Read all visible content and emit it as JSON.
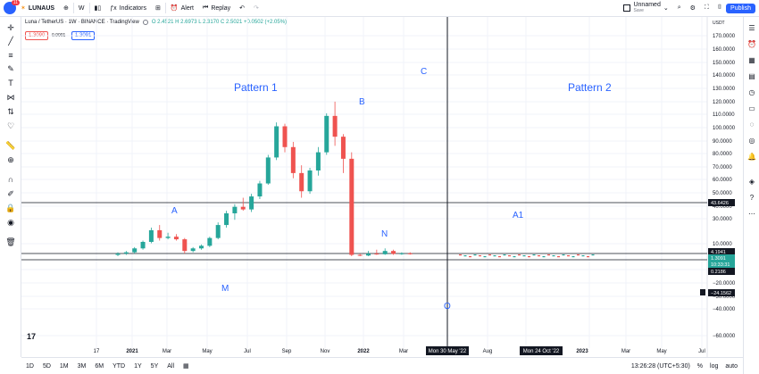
{
  "topbar": {
    "avatar_badge": "11",
    "symbol": "LUNAUS",
    "interval": "W",
    "indicators_label": "Indicators",
    "alert_label": "Alert",
    "replay_label": "Replay",
    "layout_name": "Unnamed",
    "layout_status": "Save",
    "publish_label": "Publish"
  },
  "legend": {
    "title": "Luna / TetherUS · 1W · BINANCE · TradingView",
    "ohlc": "O 2.4521  H 2.6973  L 2.3170  C 2.5021  +0.0502 (+2.05%)",
    "bid": "1.3090",
    "spread": "0.0001",
    "ask": "1.3091"
  },
  "price_axis": {
    "currency": "USDT",
    "ticks": [
      "170.0000",
      "160.0000",
      "150.0000",
      "140.0000",
      "130.0000",
      "120.0000",
      "110.0000",
      "100.0000",
      "90.0000",
      "80.0000",
      "70.0000",
      "60.0000",
      "50.0000",
      "40.0000",
      "30.0000",
      "10.0000",
      "−10.0000",
      "−20.0000",
      "−30.0000",
      "−40.0000",
      "−60.0000"
    ],
    "labels": [
      {
        "text": "43.6426",
        "kind": "line"
      },
      {
        "text": "4.1941",
        "kind": "line"
      },
      {
        "text": "1.3091",
        "kind": "current"
      },
      {
        "text": "10:33:31",
        "kind": "countdown"
      },
      {
        "text": "0.2186",
        "kind": "last"
      },
      {
        "text": "−24.1562",
        "kind": "cursor"
      }
    ]
  },
  "time_axis": {
    "ticks": [
      "17",
      "2021",
      "Mar",
      "May",
      "Jul",
      "Sep",
      "Nov",
      "2022",
      "Mar",
      "Aug",
      "2023",
      "Mar",
      "May",
      "Jul"
    ],
    "cursor_label": "Mon 30 May '22",
    "cursor2_label": "Mon 24 Oct '22"
  },
  "annotations": [
    "Pattern 1",
    "Pattern 2",
    "A",
    "B",
    "C",
    "N",
    "M",
    "O",
    "A1"
  ],
  "bottombar": {
    "ranges": [
      "1D",
      "5D",
      "1M",
      "3M",
      "6M",
      "YTD",
      "1Y",
      "5Y",
      "All"
    ],
    "time": "13:26:28 (UTC+5:30)",
    "percent": "%",
    "log": "log",
    "auto": "auto"
  },
  "colors": {
    "up": "#26a69a",
    "down": "#ef5350",
    "accent": "#2962ff",
    "annotation": "#2962ff"
  },
  "chart_data": {
    "type": "candlestick",
    "series_name": "LUNA/USDT 1W",
    "ylim": [
      -65,
      175
    ],
    "candles": [
      {
        "o": 1,
        "h": 3,
        "l": 0,
        "c": 2
      },
      {
        "o": 2,
        "h": 4,
        "l": 1,
        "c": 3
      },
      {
        "o": 3,
        "h": 7,
        "l": 2,
        "c": 6
      },
      {
        "o": 6,
        "h": 12,
        "l": 5,
        "c": 11
      },
      {
        "o": 11,
        "h": 22,
        "l": 10,
        "c": 20
      },
      {
        "o": 20,
        "h": 24,
        "l": 12,
        "c": 14
      },
      {
        "o": 14,
        "h": 18,
        "l": 13,
        "c": 15
      },
      {
        "o": 15,
        "h": 17,
        "l": 12,
        "c": 13
      },
      {
        "o": 13,
        "h": 14,
        "l": 2,
        "c": 4
      },
      {
        "o": 4,
        "h": 7,
        "l": 3,
        "c": 6
      },
      {
        "o": 6,
        "h": 9,
        "l": 5,
        "c": 8
      },
      {
        "o": 8,
        "h": 15,
        "l": 7,
        "c": 14
      },
      {
        "o": 14,
        "h": 26,
        "l": 13,
        "c": 24
      },
      {
        "o": 24,
        "h": 35,
        "l": 22,
        "c": 33
      },
      {
        "o": 33,
        "h": 40,
        "l": 28,
        "c": 38
      },
      {
        "o": 38,
        "h": 45,
        "l": 35,
        "c": 36
      },
      {
        "o": 36,
        "h": 48,
        "l": 34,
        "c": 46
      },
      {
        "o": 46,
        "h": 58,
        "l": 44,
        "c": 56
      },
      {
        "o": 56,
        "h": 78,
        "l": 55,
        "c": 76
      },
      {
        "o": 76,
        "h": 103,
        "l": 74,
        "c": 100
      },
      {
        "o": 100,
        "h": 102,
        "l": 80,
        "c": 84
      },
      {
        "o": 84,
        "h": 88,
        "l": 60,
        "c": 64
      },
      {
        "o": 64,
        "h": 70,
        "l": 45,
        "c": 50
      },
      {
        "o": 50,
        "h": 68,
        "l": 48,
        "c": 66
      },
      {
        "o": 66,
        "h": 84,
        "l": 62,
        "c": 80
      },
      {
        "o": 80,
        "h": 110,
        "l": 78,
        "c": 108
      },
      {
        "o": 108,
        "h": 119,
        "l": 85,
        "c": 92
      },
      {
        "o": 92,
        "h": 94,
        "l": 64,
        "c": 75
      },
      {
        "o": 75,
        "h": 80,
        "l": 0,
        "c": 1
      },
      {
        "o": 1,
        "h": 2,
        "l": 0,
        "c": 0.5
      },
      {
        "o": 0.5,
        "h": 4,
        "l": 0,
        "c": 2
      },
      {
        "o": 2,
        "h": 5,
        "l": 1,
        "c": 1.5
      },
      {
        "o": 1.5,
        "h": 6,
        "l": 1,
        "c": 4
      },
      {
        "o": 4,
        "h": 5,
        "l": 1,
        "c": 1.8
      },
      {
        "o": 1.8,
        "h": 3,
        "l": 1,
        "c": 2.2
      },
      {
        "o": 2.2,
        "h": 3,
        "l": 1.2,
        "c": 1.5
      }
    ]
  }
}
